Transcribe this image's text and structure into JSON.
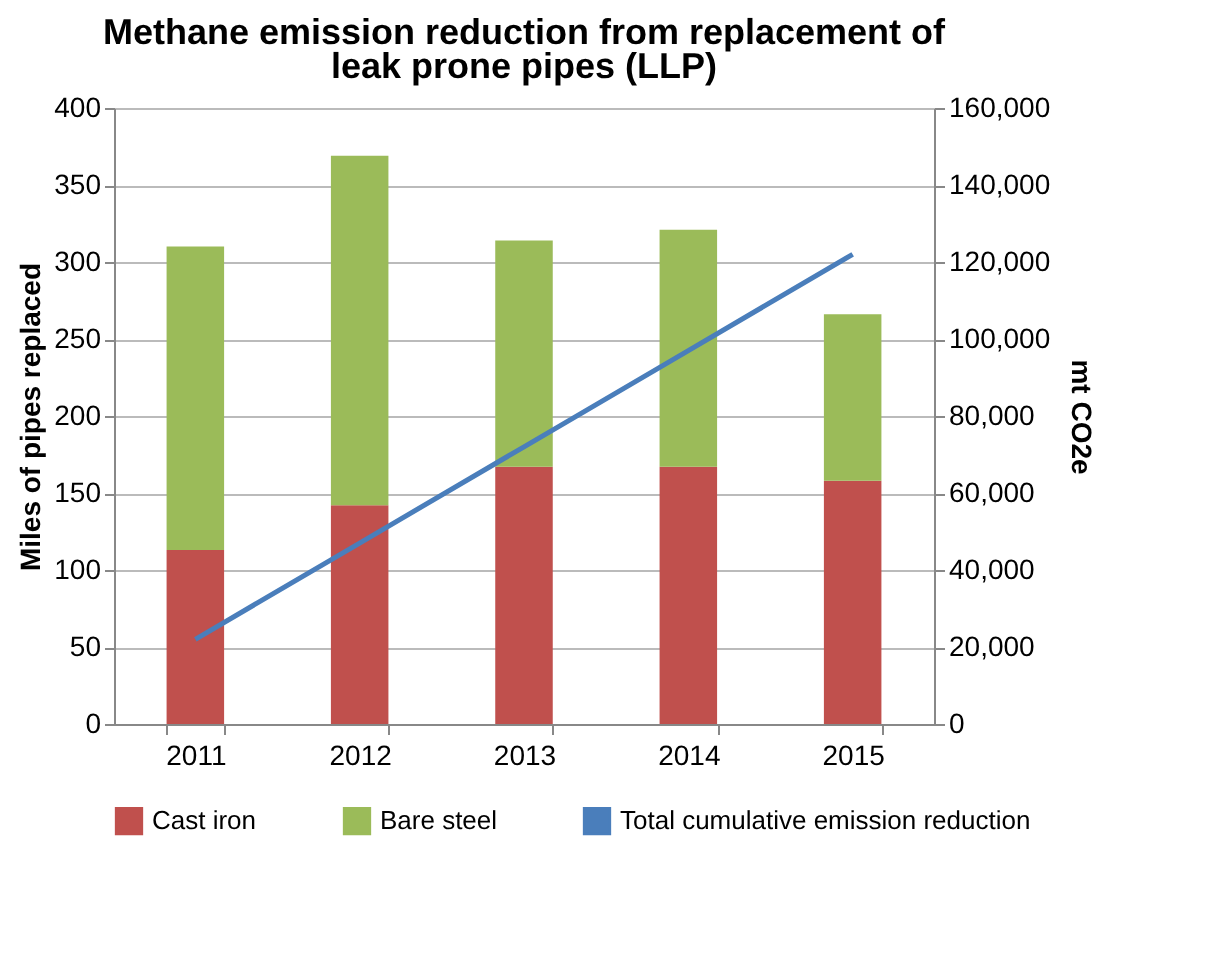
{
  "chart_data": {
    "type": "bar",
    "title": "Methane emission reduction from replacement of leak prone pipes (LLP)",
    "xlabel": null,
    "ylabel": "Miles of pipes replaced",
    "y2label": "mt CO2e",
    "categories": [
      "2011",
      "2012",
      "2013",
      "2014",
      "2015"
    ],
    "stacked": true,
    "series": [
      {
        "name": "Cast iron",
        "color": "#c0504d",
        "values": [
          113,
          142,
          167,
          167,
          158
        ]
      },
      {
        "name": "Bare steel",
        "color": "#9bbb59",
        "values": [
          197,
          227,
          147,
          154,
          108
        ]
      },
      {
        "name": "Total cumulative emission reduction",
        "type": "line",
        "axis": "y2",
        "color": "#4a7ebb",
        "values": [
          22000,
          47000,
          72000,
          97000,
          122000
        ]
      }
    ],
    "ylim": [
      0,
      400
    ],
    "yticks": [
      0,
      50,
      100,
      150,
      200,
      250,
      300,
      350,
      400
    ],
    "y2lim": [
      0,
      160000
    ],
    "y2ticks": [
      0,
      {
        "value": 20000,
        "label": "20,000"
      },
      {
        "value": 40000,
        "label": "40,000"
      },
      {
        "value": 60000,
        "label": "60,000"
      },
      {
        "value": 80000,
        "label": "80,000"
      },
      {
        "value": 100000,
        "label": "100,000"
      },
      {
        "value": 120000,
        "label": "120,000"
      },
      {
        "value": 140000,
        "label": "140,000"
      },
      {
        "value": 160000,
        "label": "160,000"
      }
    ],
    "grid": "y",
    "legend": "bottom"
  }
}
